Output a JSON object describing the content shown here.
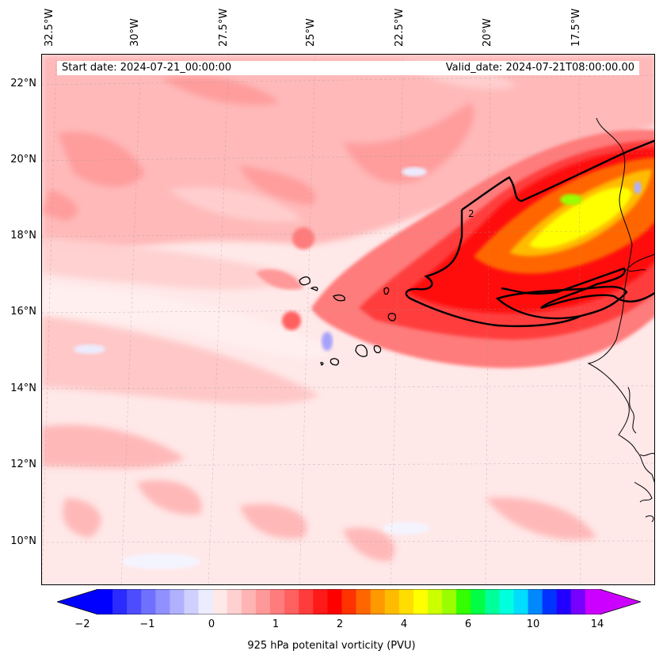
{
  "map": {
    "start_date": "Start date: 2024-07-21_00:00:00",
    "valid_date": "Valid_date: 2024-07-21T08:00:00.00",
    "longitude_labels": [
      "32.5°W",
      "30°W",
      "27.5°W",
      "25°W",
      "22.5°W",
      "20°W",
      "17.5°W"
    ],
    "latitude_labels": [
      "22°N",
      "20°N",
      "18°N",
      "16°N",
      "14°N",
      "12°N",
      "10°N"
    ],
    "contour_label": "2"
  },
  "colorbar": {
    "tick_labels": [
      "−2",
      "−1",
      "0",
      "1",
      "2",
      "4",
      "6",
      "10",
      "14"
    ],
    "label": "925 hPa potenital vorticity (PVU)",
    "colors": [
      "#0000ff",
      "#2b2bff",
      "#4d4dff",
      "#7070ff",
      "#9090ff",
      "#b0b0ff",
      "#d0d0ff",
      "#ececff",
      "#ffe8e8",
      "#ffd0d0",
      "#ffb4b4",
      "#ff9898",
      "#ff7c7c",
      "#ff6060",
      "#ff3c3c",
      "#ff1a1a",
      "#ff0000",
      "#ff3300",
      "#ff6600",
      "#ff9900",
      "#ffbb00",
      "#ffdd00",
      "#ffff00",
      "#ccff00",
      "#99ff00",
      "#33ff00",
      "#00ff44",
      "#00ff99",
      "#00ffdd",
      "#00ddff",
      "#0088ff",
      "#0033ff",
      "#2200ff",
      "#7700ff",
      "#cc00ff"
    ],
    "under_color": "#0000ff",
    "over_color": "#cc00ff"
  }
}
